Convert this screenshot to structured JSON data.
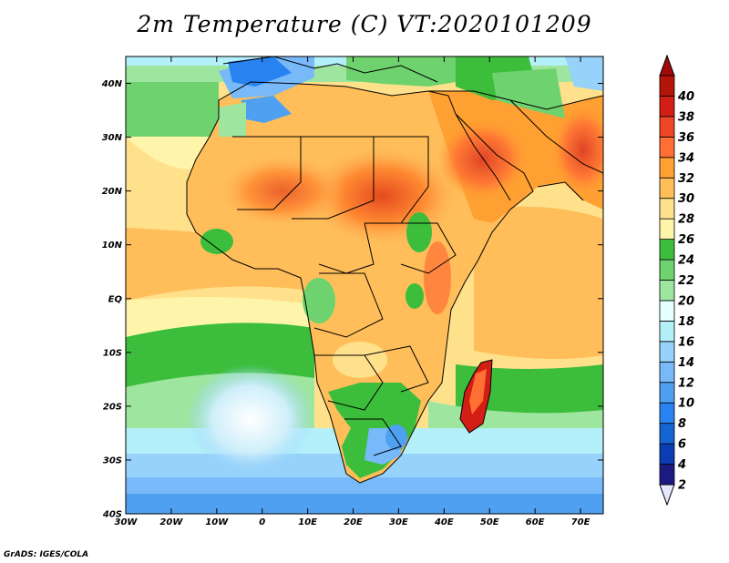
{
  "title": "2m Temperature (C) VT:2020101209",
  "credit": "GrADS: IGES/COLA",
  "map": {
    "lat_labels": [
      "40N",
      "30N",
      "20N",
      "10N",
      "EQ",
      "10S",
      "20S",
      "30S",
      "40S"
    ],
    "lon_labels": [
      "30W",
      "20W",
      "10W",
      "0",
      "10E",
      "20E",
      "30E",
      "40E",
      "50E",
      "60E",
      "70E"
    ],
    "lat_range": [
      -40,
      45
    ],
    "lon_range": [
      -30,
      75
    ]
  },
  "colorbar": {
    "labels": [
      "2",
      "4",
      "6",
      "8",
      "10",
      "12",
      "14",
      "16",
      "18",
      "20",
      "22",
      "24",
      "26",
      "28",
      "30",
      "32",
      "34",
      "36",
      "38",
      "40"
    ],
    "colors": [
      "#1a1a80",
      "#0a3cb4",
      "#1464d2",
      "#2882f0",
      "#4fa0f0",
      "#78b9fa",
      "#96d2fa",
      "#b4f0fa",
      "#e6ffff",
      "#9ee6a0",
      "#6ed26e",
      "#3cbe3c",
      "#fff5aa",
      "#ffe18c",
      "#ffbe5a",
      "#ffa032",
      "#ff6e32",
      "#f04628",
      "#d21e14",
      "#b4140a"
    ],
    "under_color": "#e6e6ff",
    "over_color": "#a00a0a"
  }
}
